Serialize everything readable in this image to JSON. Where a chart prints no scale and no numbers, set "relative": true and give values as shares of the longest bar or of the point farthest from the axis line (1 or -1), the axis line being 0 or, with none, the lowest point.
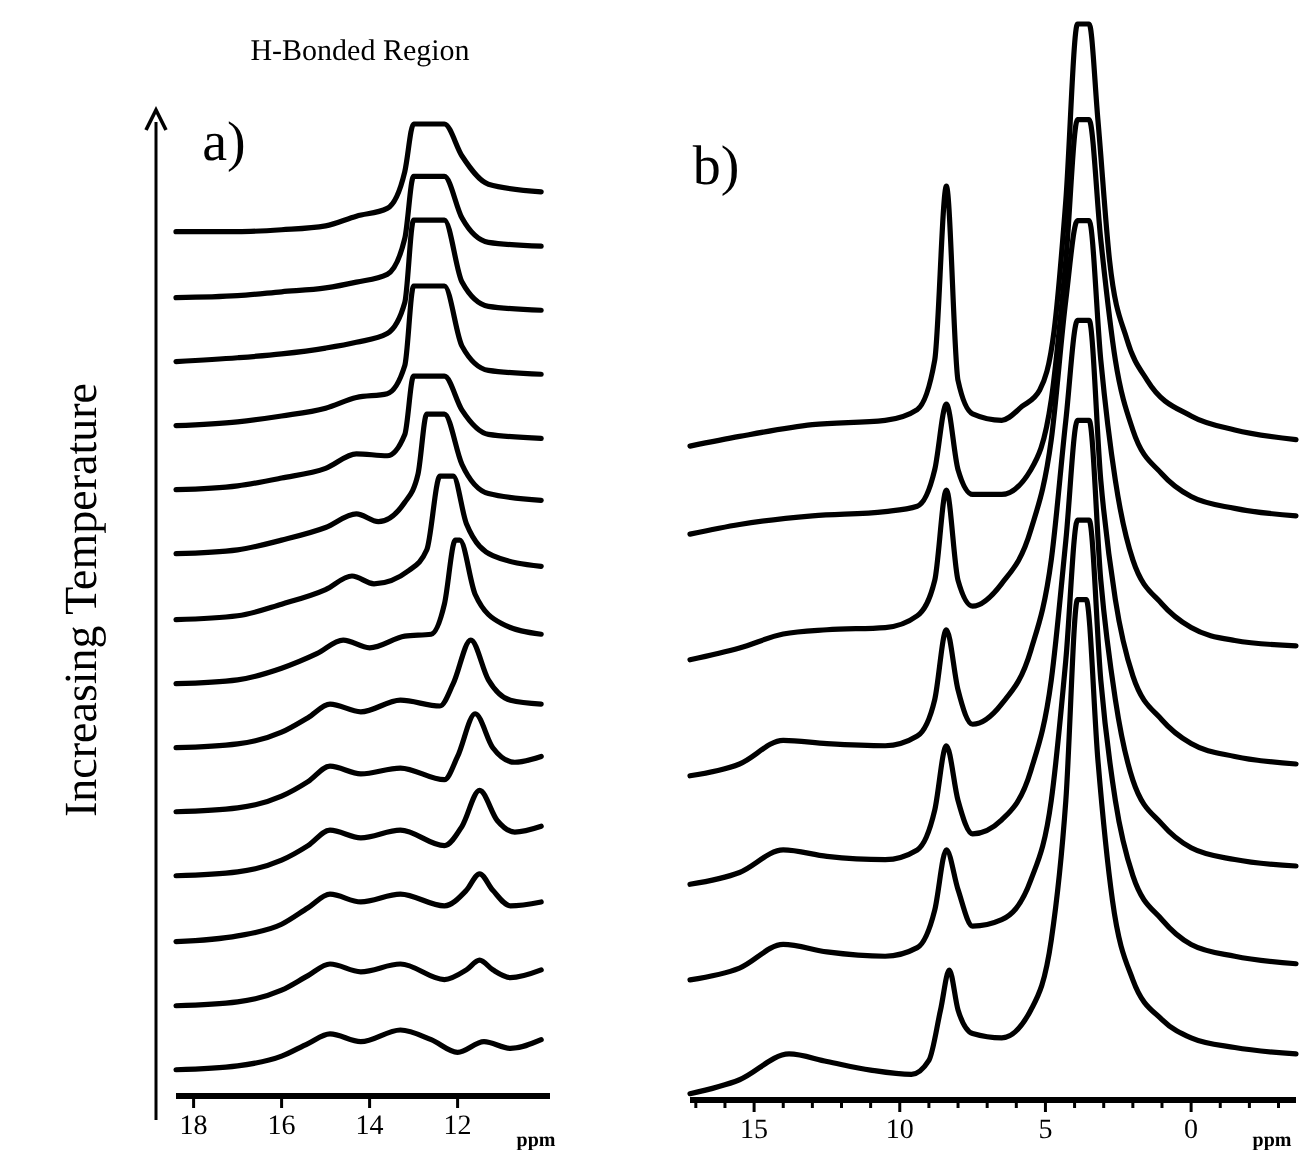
{
  "chart_data": [
    {
      "type": "line",
      "relative": true,
      "title": "H-Bonded Region",
      "ylabel": "Increasing Temperature",
      "xlabel": "ppm",
      "annotations": [
        "a)"
      ],
      "xlim": [
        18.4,
        9.9
      ],
      "xticks": [
        18,
        16,
        14,
        12
      ],
      "series": [
        {
          "color": "#000000",
          "x": [
            18.4,
            17,
            16,
            15.4,
            14.9,
            14.2,
            13.3,
            12.6,
            12.0,
            11.4,
            10.8,
            10.1
          ],
          "values": [
            0.025,
            0.029,
            0.039,
            0.052,
            0.062,
            0.054,
            0.066,
            0.056,
            0.043,
            0.054,
            0.047,
            0.056
          ]
        },
        {
          "color": "#000000",
          "x": [
            18.4,
            17,
            16,
            15.4,
            14.9,
            14.2,
            13.3,
            12.3,
            11.8,
            11.5,
            11.2,
            10.8,
            10.1
          ],
          "values": [
            0.091,
            0.095,
            0.107,
            0.122,
            0.134,
            0.126,
            0.134,
            0.118,
            0.128,
            0.138,
            0.128,
            0.12,
            0.128
          ]
        },
        {
          "color": "#000000",
          "x": [
            18.4,
            17,
            16,
            15.4,
            14.9,
            14.2,
            13.3,
            12.3,
            11.8,
            11.5,
            11.2,
            10.8,
            10.1
          ],
          "values": [
            0.157,
            0.163,
            0.175,
            0.192,
            0.206,
            0.198,
            0.206,
            0.194,
            0.21,
            0.227,
            0.21,
            0.194,
            0.198
          ]
        },
        {
          "color": "#000000",
          "x": [
            18.4,
            17,
            16,
            15.4,
            14.9,
            14.2,
            13.3,
            12.3,
            11.9,
            11.5,
            11.1,
            10.7,
            10.1
          ],
          "values": [
            0.225,
            0.229,
            0.241,
            0.256,
            0.272,
            0.264,
            0.272,
            0.256,
            0.276,
            0.313,
            0.282,
            0.27,
            0.276
          ]
        },
        {
          "color": "#000000",
          "x": [
            18.4,
            17,
            16,
            15.4,
            14.9,
            14.2,
            13.3,
            12.3,
            12.0,
            11.6,
            11.2,
            10.7,
            10.1
          ],
          "values": [
            0.291,
            0.295,
            0.307,
            0.322,
            0.338,
            0.33,
            0.336,
            0.324,
            0.348,
            0.392,
            0.357,
            0.342,
            0.348
          ]
        },
        {
          "color": "#000000",
          "x": [
            18.4,
            17,
            16,
            15.4,
            14.9,
            14.2,
            13.3,
            12.4,
            12.1,
            11.7,
            11.3,
            10.8,
            10.1
          ],
          "values": [
            0.357,
            0.361,
            0.373,
            0.388,
            0.402,
            0.394,
            0.406,
            0.4,
            0.423,
            0.468,
            0.427,
            0.406,
            0.402
          ]
        },
        {
          "color": "#000000",
          "x": [
            18.4,
            17,
            16,
            15.2,
            14.6,
            14.0,
            13.2,
            12.6,
            12.3,
            12.05,
            11.95,
            11.6,
            11.0,
            10.1
          ],
          "values": [
            0.423,
            0.427,
            0.439,
            0.454,
            0.468,
            0.46,
            0.472,
            0.474,
            0.505,
            0.571,
            0.571,
            0.515,
            0.485,
            0.474
          ]
        },
        {
          "color": "#000000",
          "x": [
            18.4,
            17,
            16,
            15.0,
            14.4,
            13.9,
            13.1,
            12.7,
            12.4,
            12.1,
            11.8,
            11.2,
            10.1
          ],
          "values": [
            0.489,
            0.493,
            0.505,
            0.52,
            0.534,
            0.526,
            0.54,
            0.561,
            0.637,
            0.637,
            0.588,
            0.555,
            0.544
          ]
        },
        {
          "color": "#000000",
          "x": [
            18.4,
            17,
            16,
            15.0,
            14.3,
            13.8,
            13.2,
            12.9,
            12.7,
            12.3,
            11.9,
            11.3,
            10.1
          ],
          "values": [
            0.557,
            0.561,
            0.571,
            0.584,
            0.598,
            0.59,
            0.61,
            0.639,
            0.701,
            0.701,
            0.649,
            0.619,
            0.612
          ]
        },
        {
          "color": "#000000",
          "x": [
            18.4,
            17,
            16,
            15.0,
            14.3,
            13.6,
            13.2,
            13.0,
            12.3,
            11.9,
            11.3,
            10.1
          ],
          "values": [
            0.623,
            0.627,
            0.635,
            0.645,
            0.66,
            0.658,
            0.68,
            0.74,
            0.74,
            0.705,
            0.68,
            0.676
          ]
        },
        {
          "color": "#000000",
          "x": [
            18.4,
            17,
            16,
            15.0,
            14.3,
            13.6,
            13.2,
            13.0,
            12.3,
            11.9,
            11.3,
            10.1
          ],
          "values": [
            0.689,
            0.693,
            0.699,
            0.707,
            0.718,
            0.722,
            0.751,
            0.833,
            0.833,
            0.771,
            0.746,
            0.742
          ]
        },
        {
          "color": "#000000",
          "x": [
            18.4,
            17,
            16,
            15.0,
            14.3,
            13.6,
            13.2,
            13.0,
            12.3,
            11.9,
            11.3,
            10.1
          ],
          "values": [
            0.755,
            0.759,
            0.763,
            0.769,
            0.775,
            0.784,
            0.816,
            0.901,
            0.901,
            0.837,
            0.812,
            0.808
          ]
        },
        {
          "color": "#000000",
          "x": [
            18.4,
            17,
            16,
            15.0,
            14.3,
            13.6,
            13.2,
            13.0,
            12.3,
            11.9,
            11.3,
            10.1
          ],
          "values": [
            0.821,
            0.823,
            0.827,
            0.831,
            0.837,
            0.845,
            0.882,
            0.946,
            0.946,
            0.903,
            0.878,
            0.874
          ]
        },
        {
          "color": "#000000",
          "x": [
            18.4,
            17,
            16,
            15.0,
            14.3,
            13.6,
            13.2,
            13.0,
            12.3,
            11.9,
            11.3,
            10.1
          ],
          "values": [
            0.889,
            0.889,
            0.891,
            0.895,
            0.905,
            0.913,
            0.951,
            1.0,
            1.0,
            0.967,
            0.938,
            0.93
          ]
        }
      ]
    },
    {
      "type": "line",
      "relative": true,
      "xlabel": "ppm",
      "annotations": [
        "b)"
      ],
      "xlim": [
        17.2,
        -3.6
      ],
      "xticks": [
        {
          "value": 17,
          "label": null
        },
        {
          "value": 16,
          "label": null
        },
        15,
        {
          "value": 14,
          "label": null
        },
        {
          "value": 13,
          "label": null
        },
        {
          "value": 12,
          "label": null
        },
        {
          "value": 11,
          "label": null
        },
        10,
        {
          "value": 9,
          "label": null
        },
        {
          "value": 8,
          "label": null
        },
        {
          "value": 7,
          "label": null
        },
        {
          "value": 6,
          "label": null
        },
        5,
        {
          "value": 4,
          "label": null
        },
        {
          "value": 3,
          "label": null
        },
        {
          "value": 2,
          "label": null
        },
        {
          "value": 1,
          "label": null
        },
        0,
        {
          "value": -1,
          "label": null
        },
        {
          "value": -2,
          "label": null
        },
        {
          "value": -3,
          "label": null
        }
      ],
      "series": [
        {
          "color": "#000000",
          "x": [
            17.2,
            15.5,
            13.8,
            12.5,
            11,
            9.6,
            9.0,
            8.6,
            8.3,
            8.0,
            7.5,
            6.5,
            5.5,
            4.8,
            4.3,
            3.9,
            3.6,
            3.2,
            2.7,
            2,
            1,
            0,
            -1.5,
            -3.6
          ],
          "values": [
            0.004,
            0.017,
            0.041,
            0.034,
            0.026,
            0.022,
            0.035,
            0.082,
            0.119,
            0.082,
            0.06,
            0.056,
            0.082,
            0.147,
            0.277,
            0.464,
            0.464,
            0.315,
            0.184,
            0.11,
            0.073,
            0.056,
            0.047,
            0.041
          ]
        },
        {
          "color": "#000000",
          "x": [
            17.2,
            15.5,
            14,
            12.5,
            10.5,
            9.4,
            8.8,
            8.4,
            8.0,
            7.5,
            6.5,
            5.5,
            4.8,
            4.3,
            3.9,
            3.5,
            3.1,
            2.6,
            2,
            1,
            0,
            -1.5,
            -3.6
          ],
          "values": [
            0.11,
            0.121,
            0.143,
            0.136,
            0.132,
            0.14,
            0.175,
            0.231,
            0.194,
            0.16,
            0.166,
            0.203,
            0.277,
            0.408,
            0.538,
            0.538,
            0.389,
            0.277,
            0.207,
            0.166,
            0.143,
            0.132,
            0.125
          ]
        },
        {
          "color": "#000000",
          "x": [
            17.2,
            15.5,
            14,
            12.5,
            10.5,
            9.4,
            8.8,
            8.4,
            8.0,
            7.5,
            6.5,
            5.5,
            4.8,
            4.3,
            3.9,
            3.5,
            3.1,
            2.6,
            2,
            1,
            0,
            -1.5,
            -3.6
          ],
          "values": [
            0.199,
            0.21,
            0.231,
            0.225,
            0.222,
            0.231,
            0.268,
            0.328,
            0.277,
            0.246,
            0.259,
            0.305,
            0.389,
            0.519,
            0.631,
            0.631,
            0.482,
            0.371,
            0.296,
            0.255,
            0.233,
            0.222,
            0.216
          ]
        },
        {
          "color": "#000000",
          "x": [
            17.2,
            15.5,
            14,
            12.5,
            10.5,
            9.4,
            8.8,
            8.4,
            8.0,
            7.5,
            6.5,
            5.5,
            4.8,
            4.3,
            3.9,
            3.5,
            3.1,
            2.6,
            2,
            1,
            0,
            -1.5,
            -3.6
          ],
          "values": [
            0.3,
            0.311,
            0.333,
            0.33,
            0.328,
            0.337,
            0.371,
            0.436,
            0.38,
            0.348,
            0.367,
            0.417,
            0.501,
            0.631,
            0.724,
            0.724,
            0.575,
            0.464,
            0.393,
            0.352,
            0.33,
            0.318,
            0.311
          ]
        },
        {
          "color": "#000000",
          "x": [
            17.2,
            15.5,
            14,
            12.5,
            10.5,
            9.4,
            8.8,
            8.4,
            8.0,
            7.5,
            6.5,
            5.5,
            4.8,
            4.3,
            3.9,
            3.5,
            3.1,
            2.6,
            2,
            1,
            0,
            -1.5,
            -3.6
          ],
          "values": [
            0.408,
            0.419,
            0.432,
            0.436,
            0.438,
            0.449,
            0.482,
            0.566,
            0.482,
            0.458,
            0.479,
            0.529,
            0.613,
            0.743,
            0.817,
            0.817,
            0.687,
            0.575,
            0.501,
            0.46,
            0.438,
            0.426,
            0.421
          ]
        },
        {
          "color": "#000000",
          "x": [
            17.2,
            15.5,
            13,
            10.5,
            9.4,
            8.8,
            8.4,
            8.0,
            7.5,
            6.5,
            5.5,
            4.8,
            4.3,
            3.9,
            3.5,
            3.1,
            2.6,
            2,
            1,
            0,
            -1.5,
            -3.6
          ],
          "values": [
            0.525,
            0.534,
            0.542,
            0.546,
            0.551,
            0.585,
            0.646,
            0.585,
            0.562,
            0.562,
            0.585,
            0.65,
            0.78,
            0.911,
            0.911,
            0.799,
            0.687,
            0.622,
            0.581,
            0.56,
            0.549,
            0.542
          ]
        },
        {
          "color": "#000000",
          "x": [
            17.2,
            15.5,
            13,
            10.5,
            9.4,
            8.8,
            8.4,
            8.0,
            7.5,
            6.5,
            5.8,
            5.2,
            4.7,
            4.3,
            3.9,
            3.5,
            3.2,
            2.8,
            2.2,
            1.5,
            0,
            -1.5,
            -3.6
          ],
          "values": [
            0.607,
            0.616,
            0.627,
            0.631,
            0.641,
            0.687,
            0.849,
            0.668,
            0.637,
            0.631,
            0.644,
            0.659,
            0.715,
            0.836,
            1.0,
            1.0,
            0.911,
            0.78,
            0.706,
            0.668,
            0.635,
            0.622,
            0.613
          ]
        }
      ]
    }
  ]
}
